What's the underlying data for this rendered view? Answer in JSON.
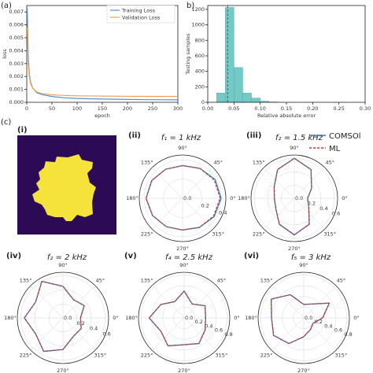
{
  "panel_labels": {
    "a": "(a)",
    "b": "b)",
    "c": "(c)",
    "i": "(i)",
    "ii": "(ii)",
    "iii": "(iii)",
    "iv": "(iv)",
    "v": "(v)",
    "vi": "(vi)"
  },
  "colors": {
    "training": "#5b8fd0",
    "validation": "#f0a050",
    "hist": "#72c9c6",
    "comsol": "#4a78b8",
    "ml": "#c0392b",
    "bg_geom": "#2d0a56",
    "geom": "#f5e23a"
  },
  "chart_data": [
    {
      "type": "line",
      "id": "a",
      "xlabel": "epoch",
      "ylabel": "loss",
      "xlim": [
        0,
        300
      ],
      "ylim": [
        0,
        0.0075
      ],
      "x_ticks": [
        "0",
        "50",
        "100",
        "150",
        "200",
        "250",
        "300"
      ],
      "y_ticks": [
        "0.000",
        "0.001",
        "0.002",
        "0.003",
        "0.004",
        "0.005",
        "0.006",
        "0.007"
      ],
      "legend_position": "top-right",
      "series": [
        {
          "name": "Training Loss",
          "x": [
            1,
            2,
            3,
            5,
            8,
            12,
            20,
            30,
            50,
            75,
            100,
            150,
            200,
            250,
            300
          ],
          "y": [
            0.0073,
            0.0052,
            0.0036,
            0.0022,
            0.0015,
            0.0011,
            0.00075,
            0.0006,
            0.00045,
            0.00035,
            0.0003,
            0.00025,
            0.00022,
            0.0002,
            0.00019
          ]
        },
        {
          "name": "Validation Loss",
          "x": [
            1,
            2,
            3,
            5,
            8,
            12,
            20,
            30,
            50,
            75,
            100,
            150,
            200,
            250,
            300
          ],
          "y": [
            0.0058,
            0.0042,
            0.003,
            0.002,
            0.0014,
            0.0011,
            0.0008,
            0.00068,
            0.00058,
            0.00053,
            0.0005,
            0.00048,
            0.00047,
            0.00046,
            0.00046
          ]
        }
      ]
    },
    {
      "type": "bar",
      "id": "b",
      "xlabel": "Relative absolute error",
      "ylabel": "Testing samples",
      "xlim": [
        0,
        0.3
      ],
      "ylim": [
        0,
        1250
      ],
      "x_ticks": [
        "0.00",
        "0.05",
        "0.10",
        "0.15",
        "0.20",
        "0.25",
        "0.30"
      ],
      "y_ticks": [
        "0",
        "200",
        "400",
        "600",
        "800",
        "1000",
        "1200"
      ],
      "bin_edges": [
        0.0167,
        0.0333,
        0.05,
        0.0667,
        0.0833,
        0.1,
        0.1167,
        0.1333
      ],
      "values": [
        120,
        1225,
        450,
        120,
        55,
        15,
        5
      ],
      "mean_line": 0.038
    },
    {
      "type": "polar",
      "id": "ii",
      "title": "f₁ = 1 kHz",
      "r_ticks": [
        "0.0",
        "0.2",
        "0.4"
      ],
      "rmax": 0.45,
      "angle_ticks": [
        "0°",
        "45°",
        "90°",
        "135°",
        "180°",
        "225°",
        "270°",
        "315°"
      ],
      "series": [
        {
          "name": "COMSOL",
          "theta_deg": [
            0,
            30,
            60,
            90,
            120,
            150,
            180,
            210,
            240,
            270,
            300,
            330
          ],
          "r": [
            0.4,
            0.39,
            0.36,
            0.34,
            0.35,
            0.37,
            0.38,
            0.36,
            0.34,
            0.33,
            0.35,
            0.38
          ]
        },
        {
          "name": "ML",
          "theta_deg": [
            0,
            30,
            60,
            90,
            120,
            150,
            180,
            210,
            240,
            270,
            300,
            330
          ],
          "r": [
            0.39,
            0.38,
            0.36,
            0.34,
            0.35,
            0.37,
            0.38,
            0.36,
            0.34,
            0.33,
            0.35,
            0.37
          ]
        }
      ]
    },
    {
      "type": "polar",
      "id": "iii",
      "title": "f₂ = 1.5 kHz",
      "r_ticks": [
        "0.0",
        "0.2",
        "0.4",
        "0.6"
      ],
      "rmax": 0.65,
      "angle_ticks": [
        "0°",
        "45°",
        "90°",
        "135°",
        "180°",
        "225°",
        "270°",
        "315°"
      ],
      "series": [
        {
          "name": "COMSOL",
          "theta_deg": [
            0,
            30,
            60,
            90,
            120,
            150,
            180,
            210,
            240,
            270,
            300,
            330
          ],
          "r": [
            0.2,
            0.3,
            0.5,
            0.6,
            0.5,
            0.35,
            0.3,
            0.32,
            0.45,
            0.55,
            0.45,
            0.25
          ]
        },
        {
          "name": "ML",
          "theta_deg": [
            0,
            30,
            60,
            90,
            120,
            150,
            180,
            210,
            240,
            270,
            300,
            330
          ],
          "r": [
            0.2,
            0.3,
            0.5,
            0.6,
            0.5,
            0.35,
            0.3,
            0.32,
            0.45,
            0.55,
            0.45,
            0.25
          ]
        }
      ]
    },
    {
      "type": "polar",
      "id": "iv",
      "title": "f₂ = 2 kHz",
      "r_ticks": [
        "0.0",
        "0.2",
        "0.4",
        "0.6"
      ],
      "rmax": 0.65,
      "angle_ticks": [
        "0°",
        "45°",
        "90°",
        "135°",
        "180°",
        "225°",
        "270°",
        "315°"
      ],
      "series": [
        {
          "name": "COMSOL",
          "theta_deg": [
            0,
            30,
            60,
            90,
            120,
            150,
            180,
            210,
            240,
            270,
            300,
            330
          ],
          "r": [
            0.25,
            0.35,
            0.3,
            0.45,
            0.6,
            0.45,
            0.55,
            0.45,
            0.55,
            0.45,
            0.3,
            0.3
          ]
        },
        {
          "name": "ML",
          "theta_deg": [
            0,
            30,
            60,
            90,
            120,
            150,
            180,
            210,
            240,
            270,
            300,
            330
          ],
          "r": [
            0.25,
            0.35,
            0.3,
            0.45,
            0.6,
            0.45,
            0.55,
            0.45,
            0.55,
            0.45,
            0.3,
            0.3
          ]
        }
      ]
    },
    {
      "type": "polar",
      "id": "v",
      "title": "f₄ = 2.5 kHz",
      "r_ticks": [
        "0.0",
        "0.2",
        "0.4",
        "0.6",
        "0.8"
      ],
      "rmax": 0.85,
      "angle_ticks": [
        "0°",
        "45°",
        "90°",
        "135°",
        "180°",
        "225°",
        "270°",
        "315°"
      ],
      "series": [
        {
          "name": "COMSOL",
          "theta_deg": [
            0,
            30,
            60,
            90,
            120,
            150,
            180,
            210,
            240,
            270,
            300,
            330
          ],
          "r": [
            0.4,
            0.45,
            0.3,
            0.5,
            0.35,
            0.5,
            0.65,
            0.5,
            0.6,
            0.5,
            0.55,
            0.45
          ]
        },
        {
          "name": "ML",
          "theta_deg": [
            0,
            30,
            60,
            90,
            120,
            150,
            180,
            210,
            240,
            270,
            300,
            330
          ],
          "r": [
            0.4,
            0.45,
            0.3,
            0.5,
            0.35,
            0.5,
            0.65,
            0.5,
            0.6,
            0.5,
            0.55,
            0.45
          ]
        }
      ]
    },
    {
      "type": "polar",
      "id": "vi",
      "title": "f₅ = 3 kHz",
      "r_ticks": [
        "0.0",
        "0.2",
        "0.4",
        "0.6",
        "0.8"
      ],
      "rmax": 0.85,
      "angle_ticks": [
        "0°",
        "45°",
        "90°",
        "135°",
        "180°",
        "225°",
        "270°",
        "315°"
      ],
      "series": [
        {
          "name": "COMSOL",
          "theta_deg": [
            0,
            30,
            60,
            90,
            120,
            150,
            180,
            210,
            240,
            270,
            300,
            330
          ],
          "r": [
            0.35,
            0.55,
            0.3,
            0.25,
            0.5,
            0.7,
            0.6,
            0.65,
            0.55,
            0.35,
            0.25,
            0.2
          ]
        },
        {
          "name": "ML",
          "theta_deg": [
            0,
            30,
            60,
            90,
            120,
            150,
            180,
            210,
            240,
            270,
            300,
            330
          ],
          "r": [
            0.35,
            0.55,
            0.3,
            0.25,
            0.5,
            0.7,
            0.6,
            0.65,
            0.55,
            0.35,
            0.25,
            0.2
          ]
        }
      ]
    }
  ],
  "legend_c": [
    {
      "name": "COMSOl"
    },
    {
      "name": "ML"
    }
  ]
}
